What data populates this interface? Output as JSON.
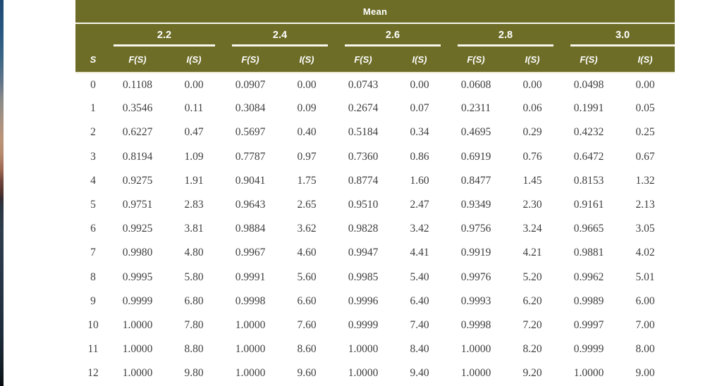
{
  "colors": {
    "header_bg": "#6d6d28",
    "header_text": "#ffffff",
    "body_text": "#3e3e3e"
  },
  "table": {
    "title": "Mean",
    "row_header": "S",
    "sub_headers": [
      "F(S)",
      "I(S)"
    ],
    "means": [
      "2.2",
      "2.4",
      "2.6",
      "2.8",
      "3.0"
    ],
    "rows": [
      {
        "s": "0",
        "values": [
          "0.1108",
          "0.00",
          "0.0907",
          "0.00",
          "0.0743",
          "0.00",
          "0.0608",
          "0.00",
          "0.0498",
          "0.00"
        ]
      },
      {
        "s": "1",
        "values": [
          "0.3546",
          "0.11",
          "0.3084",
          "0.09",
          "0.2674",
          "0.07",
          "0.2311",
          "0.06",
          "0.1991",
          "0.05"
        ]
      },
      {
        "s": "2",
        "values": [
          "0.6227",
          "0.47",
          "0.5697",
          "0.40",
          "0.5184",
          "0.34",
          "0.4695",
          "0.29",
          "0.4232",
          "0.25"
        ]
      },
      {
        "s": "3",
        "values": [
          "0.8194",
          "1.09",
          "0.7787",
          "0.97",
          "0.7360",
          "0.86",
          "0.6919",
          "0.76",
          "0.6472",
          "0.67"
        ]
      },
      {
        "s": "4",
        "values": [
          "0.9275",
          "1.91",
          "0.9041",
          "1.75",
          "0.8774",
          "1.60",
          "0.8477",
          "1.45",
          "0.8153",
          "1.32"
        ]
      },
      {
        "s": "5",
        "values": [
          "0.9751",
          "2.83",
          "0.9643",
          "2.65",
          "0.9510",
          "2.47",
          "0.9349",
          "2.30",
          "0.9161",
          "2.13"
        ]
      },
      {
        "s": "6",
        "values": [
          "0.9925",
          "3.81",
          "0.9884",
          "3.62",
          "0.9828",
          "3.42",
          "0.9756",
          "3.24",
          "0.9665",
          "3.05"
        ]
      },
      {
        "s": "7",
        "values": [
          "0.9980",
          "4.80",
          "0.9967",
          "4.60",
          "0.9947",
          "4.41",
          "0.9919",
          "4.21",
          "0.9881",
          "4.02"
        ]
      },
      {
        "s": "8",
        "values": [
          "0.9995",
          "5.80",
          "0.9991",
          "5.60",
          "0.9985",
          "5.40",
          "0.9976",
          "5.20",
          "0.9962",
          "5.01"
        ]
      },
      {
        "s": "9",
        "values": [
          "0.9999",
          "6.80",
          "0.9998",
          "6.60",
          "0.9996",
          "6.40",
          "0.9993",
          "6.20",
          "0.9989",
          "6.00"
        ]
      },
      {
        "s": "10",
        "values": [
          "1.0000",
          "7.80",
          "1.0000",
          "7.60",
          "0.9999",
          "7.40",
          "0.9998",
          "7.20",
          "0.9997",
          "7.00"
        ]
      },
      {
        "s": "11",
        "values": [
          "1.0000",
          "8.80",
          "1.0000",
          "8.60",
          "1.0000",
          "8.40",
          "1.0000",
          "8.20",
          "0.9999",
          "8.00"
        ]
      },
      {
        "s": "12",
        "values": [
          "1.0000",
          "9.80",
          "1.0000",
          "9.60",
          "1.0000",
          "9.40",
          "1.0000",
          "9.20",
          "1.0000",
          "9.00"
        ]
      }
    ]
  }
}
